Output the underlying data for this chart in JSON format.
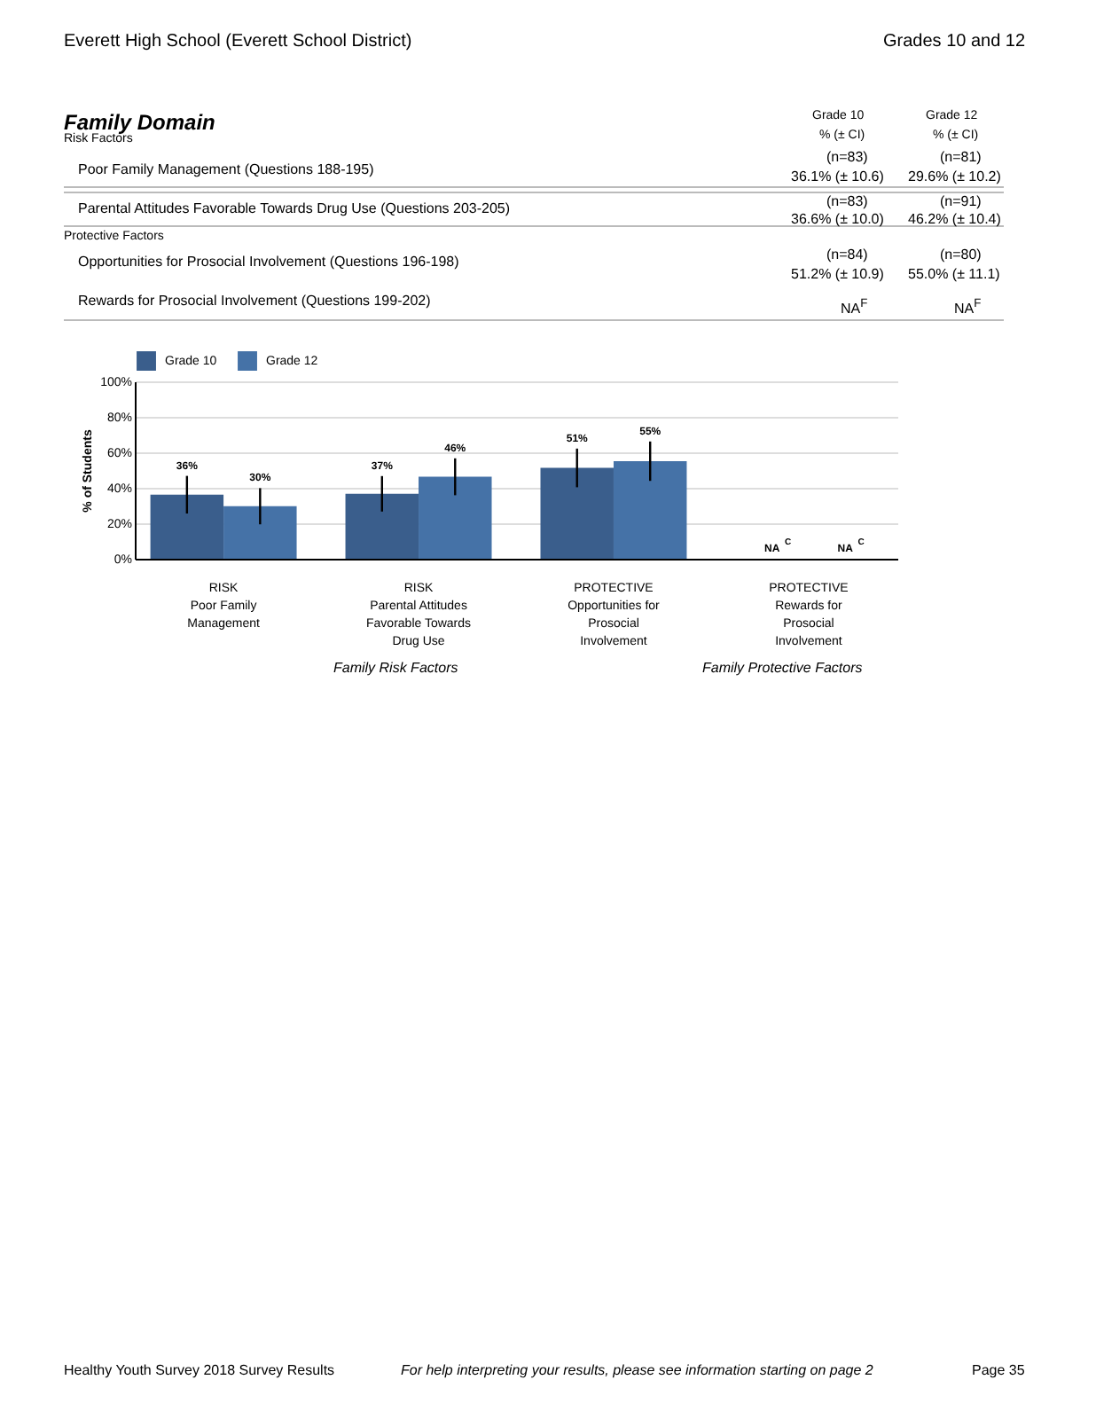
{
  "chart_data": {
    "type": "bar",
    "categories": [
      "RISK\nPoor Family\nManagement",
      "RISK\nParental Attitudes\nFavorable Towards\nDrug Use",
      "PROTECTIVE\nOpportunities for\nProsocial\nInvolvement",
      "PROTECTIVE\nRewards for\nProsocial\nInvolvement"
    ],
    "series": [
      {
        "name": "Grade 10",
        "color": "#3a5e8c",
        "values": [
          36.1,
          36.6,
          51.2,
          null
        ],
        "errors": [
          10.6,
          10.0,
          10.9,
          null
        ],
        "value_labels": [
          "36%",
          "37%",
          "51%",
          "NA$^{C}$"
        ]
      },
      {
        "name": "Grade 12",
        "color": "#4572a7",
        "values": [
          29.6,
          46.2,
          55.0,
          null
        ],
        "errors": [
          10.2,
          10.4,
          11.1,
          null
        ],
        "value_labels": [
          "30%",
          "46%",
          "55%",
          "NA$^{C}$"
        ]
      }
    ],
    "ylabel": "% of Students",
    "ylim": [
      0,
      100
    ],
    "yticks": [
      {
        "value": 0,
        "label": "0%"
      },
      {
        "value": 20,
        "label": "20%"
      },
      {
        "value": 40,
        "label": "40%"
      },
      {
        "value": 60,
        "label": "60%"
      },
      {
        "value": 80,
        "label": "80%"
      },
      {
        "value": 100,
        "label": "100%"
      }
    ],
    "grid": "y",
    "legend": "top left",
    "annotations": [
      "Everett High School (Everett School District)",
      "Grades 10 and 12",
      "Family Domain",
      "Risk Factors",
      "Grade 10",
      "Grade 12",
      "% (± CI)",
      "% (± CI)",
      "Poor Family Management (Questions 188-195)",
      "(n=83)",
      "(n=81)",
      "36.1% (± 10.6)",
      "29.6% (± 10.2)",
      "Parental Attitudes Favorable Towards Drug Use (Questions 203-205)",
      "(n=83)",
      "(n=91)",
      "36.6% (± 10.0)",
      "46.2% (± 10.4)",
      "Protective Factors",
      "Opportunities for Prosocial Involvement (Questions 196-198)",
      "(n=84)",
      "(n=80)",
      "51.2% (± 10.9)",
      "55.0% (± 11.1)",
      "Rewards for Prosocial Involvement (Questions 199-202)",
      "NA$^{F}$",
      "NA$^{F}$",
      "Family Risk Factors",
      "Family Protective Factors",
      "Healthy Youth Survey 2018 Survey Results",
      "For help interpreting your results, please see information starting on page 2",
      "Page 35"
    ]
  }
}
